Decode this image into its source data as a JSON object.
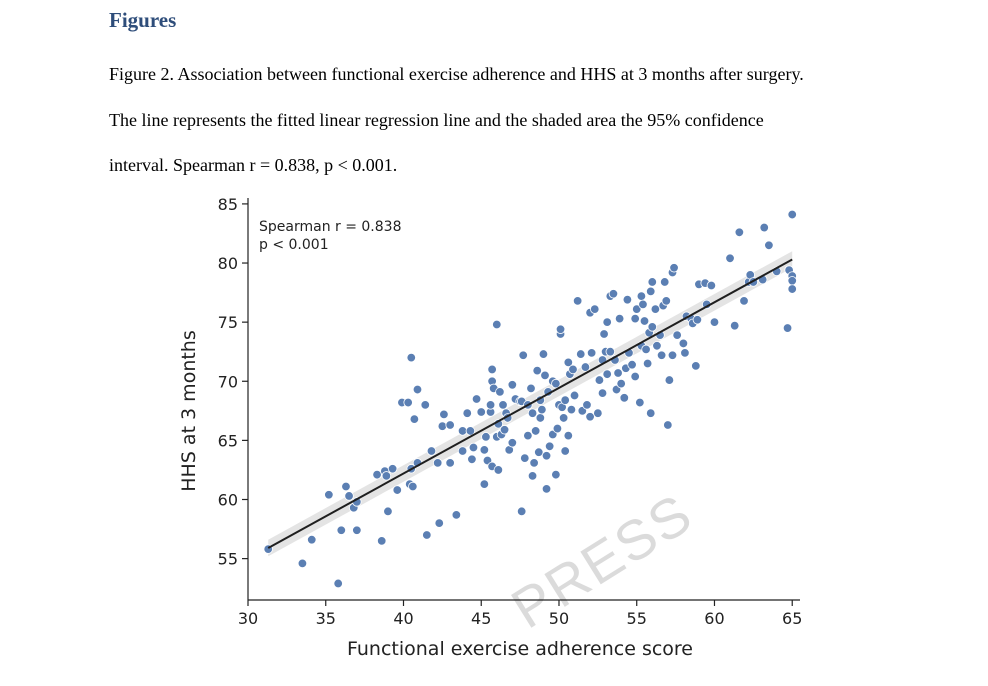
{
  "document": {
    "heading": "Figures",
    "caption_lines": [
      "Figure 2. Association between functional exercise adherence and HHS at 3 months after surgery.",
      "The line represents the fitted linear regression line and the shaded area the 95% confidence",
      "interval. Spearman r = 0.838, p < 0.001."
    ],
    "watermark": "PRESS"
  },
  "chart_data": {
    "type": "scatter",
    "xlabel": "Functional exercise adherence score",
    "ylabel": "HHS at 3 months",
    "xlim": [
      30,
      65.5
    ],
    "ylim": [
      51.5,
      85.5
    ],
    "xticks": [
      30,
      35,
      40,
      45,
      50,
      55,
      60,
      65
    ],
    "yticks": [
      55,
      60,
      65,
      70,
      75,
      80,
      85
    ],
    "annotation": [
      "Spearman r = 0.838",
      "p < 0.001"
    ],
    "grid": false,
    "colors": {
      "points": "#5b7fb3",
      "point_edge": "#ffffff",
      "line": "#1f1f1f",
      "band": "#d9d9d9"
    },
    "regression_line": {
      "x": [
        31.3,
        65
      ],
      "y": [
        55.9,
        80.3
      ]
    },
    "confidence_band_halfwidth": 0.7,
    "points": [
      [
        31.3,
        55.8
      ],
      [
        33.5,
        54.6
      ],
      [
        34.1,
        56.6
      ],
      [
        35.2,
        60.4
      ],
      [
        35.8,
        52.9
      ],
      [
        36,
        57.4
      ],
      [
        36.3,
        61.1
      ],
      [
        36.5,
        60.3
      ],
      [
        36.8,
        59.3
      ],
      [
        37,
        59.8
      ],
      [
        37,
        57.4
      ],
      [
        38.3,
        62.1
      ],
      [
        38.6,
        56.5
      ],
      [
        38.8,
        62.4
      ],
      [
        38.9,
        62
      ],
      [
        39,
        59
      ],
      [
        39.3,
        62.6
      ],
      [
        39.6,
        60.8
      ],
      [
        39.9,
        68.2
      ],
      [
        40.3,
        68.2
      ],
      [
        40.4,
        61.3
      ],
      [
        40.5,
        72
      ],
      [
        40.5,
        62.6
      ],
      [
        40.6,
        61.1
      ],
      [
        40.7,
        66.8
      ],
      [
        40.9,
        69.3
      ],
      [
        40.9,
        63.1
      ],
      [
        41.4,
        68
      ],
      [
        41.5,
        57
      ],
      [
        41.8,
        64.1
      ],
      [
        42.2,
        63.1
      ],
      [
        42.3,
        58
      ],
      [
        42.5,
        66.2
      ],
      [
        42.6,
        67.2
      ],
      [
        43,
        66.3
      ],
      [
        43,
        63.1
      ],
      [
        43.4,
        58.7
      ],
      [
        43.8,
        65.8
      ],
      [
        43.8,
        64.1
      ],
      [
        44.1,
        67.3
      ],
      [
        44.3,
        65.8
      ],
      [
        44.4,
        63.4
      ],
      [
        44.5,
        64.4
      ],
      [
        44.7,
        68.5
      ],
      [
        45,
        67.4
      ],
      [
        45.2,
        64.2
      ],
      [
        45.2,
        61.3
      ],
      [
        45.3,
        65.3
      ],
      [
        45.4,
        63.3
      ],
      [
        45.6,
        67.4
      ],
      [
        45.6,
        68
      ],
      [
        45.7,
        70
      ],
      [
        45.7,
        71
      ],
      [
        45.7,
        62.8
      ],
      [
        45.8,
        69.4
      ],
      [
        46,
        65.3
      ],
      [
        46,
        74.8
      ],
      [
        46.1,
        66.4
      ],
      [
        46.1,
        62.5
      ],
      [
        46.2,
        69.1
      ],
      [
        46.3,
        65.5
      ],
      [
        46.4,
        68
      ],
      [
        46.5,
        65.9
      ],
      [
        46.6,
        67.3
      ],
      [
        46.7,
        66.9
      ],
      [
        46.8,
        64.2
      ],
      [
        47,
        69.7
      ],
      [
        47,
        64.8
      ],
      [
        47.2,
        68.5
      ],
      [
        47.5,
        68.3
      ],
      [
        47.6,
        68.3
      ],
      [
        47.6,
        59
      ],
      [
        47.7,
        72.2
      ],
      [
        47.8,
        63.5
      ],
      [
        48,
        65.4
      ],
      [
        48,
        68
      ],
      [
        48.2,
        69.4
      ],
      [
        48.3,
        62
      ],
      [
        48.3,
        67.3
      ],
      [
        48.4,
        63.1
      ],
      [
        48.5,
        65.8
      ],
      [
        48.6,
        70.9
      ],
      [
        48.7,
        64
      ],
      [
        48.8,
        68.4
      ],
      [
        48.8,
        66.9
      ],
      [
        48.9,
        67.6
      ],
      [
        49,
        72.3
      ],
      [
        49.1,
        70.5
      ],
      [
        49.2,
        63.7
      ],
      [
        49.2,
        60.9
      ],
      [
        49.3,
        69.1
      ],
      [
        49.4,
        64.5
      ],
      [
        49.6,
        65.5
      ],
      [
        49.6,
        70
      ],
      [
        49.8,
        69.8
      ],
      [
        49.8,
        62.1
      ],
      [
        49.9,
        66
      ],
      [
        50,
        68
      ],
      [
        50.1,
        74
      ],
      [
        50.1,
        74.4
      ],
      [
        50.2,
        67.8
      ],
      [
        50.3,
        66.9
      ],
      [
        50.4,
        64.1
      ],
      [
        50.4,
        68.4
      ],
      [
        50.6,
        65.4
      ],
      [
        50.6,
        71.6
      ],
      [
        50.7,
        70.6
      ],
      [
        50.8,
        67.6
      ],
      [
        50.9,
        71
      ],
      [
        51,
        68.8
      ],
      [
        51.2,
        76.8
      ],
      [
        51.4,
        72.3
      ],
      [
        51.5,
        67.5
      ],
      [
        51.7,
        71.2
      ],
      [
        51.8,
        68
      ],
      [
        52,
        67
      ],
      [
        52,
        75.8
      ],
      [
        52.1,
        72.4
      ],
      [
        52.3,
        76.1
      ],
      [
        52.5,
        67.3
      ],
      [
        52.6,
        70.1
      ],
      [
        52.8,
        71.8
      ],
      [
        52.8,
        69
      ],
      [
        52.9,
        74
      ],
      [
        53,
        72.5
      ],
      [
        53.1,
        70.6
      ],
      [
        53.1,
        75
      ],
      [
        53.3,
        72.5
      ],
      [
        53.3,
        77.2
      ],
      [
        53.5,
        77.4
      ],
      [
        53.6,
        71.8
      ],
      [
        53.7,
        69.3
      ],
      [
        53.8,
        70.7
      ],
      [
        53.9,
        75.3
      ],
      [
        54,
        69.8
      ],
      [
        54.2,
        68.6
      ],
      [
        54.3,
        71.1
      ],
      [
        54.4,
        76.9
      ],
      [
        54.5,
        72.4
      ],
      [
        54.7,
        71.4
      ],
      [
        54.9,
        70.4
      ],
      [
        54.9,
        75.3
      ],
      [
        55,
        76.1
      ],
      [
        55.2,
        68.2
      ],
      [
        55.3,
        77.2
      ],
      [
        55.3,
        73
      ],
      [
        55.4,
        76.5
      ],
      [
        55.5,
        75.1
      ],
      [
        55.6,
        72.7
      ],
      [
        55.7,
        71.5
      ],
      [
        55.8,
        74.1
      ],
      [
        55.9,
        77.6
      ],
      [
        55.9,
        67.3
      ],
      [
        56,
        78.4
      ],
      [
        56,
        74.6
      ],
      [
        56.2,
        76.1
      ],
      [
        56.3,
        73
      ],
      [
        56.5,
        73.9
      ],
      [
        56.6,
        72.2
      ],
      [
        56.7,
        76.4
      ],
      [
        56.8,
        78.4
      ],
      [
        56.9,
        76.8
      ],
      [
        57,
        66.3
      ],
      [
        57.1,
        70.1
      ],
      [
        57.3,
        72.2
      ],
      [
        57.3,
        79.2
      ],
      [
        57.4,
        79.6
      ],
      [
        57.6,
        73.9
      ],
      [
        58,
        73.2
      ],
      [
        58.1,
        72.4
      ],
      [
        58.2,
        75.5
      ],
      [
        58.5,
        75.3
      ],
      [
        58.6,
        74.9
      ],
      [
        58.8,
        71.3
      ],
      [
        58.9,
        75.2
      ],
      [
        59,
        78.2
      ],
      [
        59.4,
        78.3
      ],
      [
        59.5,
        76.5
      ],
      [
        59.8,
        78.1
      ],
      [
        60,
        75
      ],
      [
        61,
        80.4
      ],
      [
        61.3,
        74.7
      ],
      [
        61.6,
        82.6
      ],
      [
        61.9,
        76.8
      ],
      [
        62.2,
        78.4
      ],
      [
        62.3,
        79
      ],
      [
        62.5,
        78.4
      ],
      [
        63.1,
        78.6
      ],
      [
        63.2,
        83
      ],
      [
        63.5,
        81.5
      ],
      [
        64,
        79.3
      ],
      [
        64.7,
        74.5
      ],
      [
        64.8,
        79.4
      ],
      [
        65,
        84.1
      ],
      [
        65,
        78.9
      ],
      [
        65,
        78.5
      ],
      [
        65,
        77.8
      ]
    ]
  }
}
